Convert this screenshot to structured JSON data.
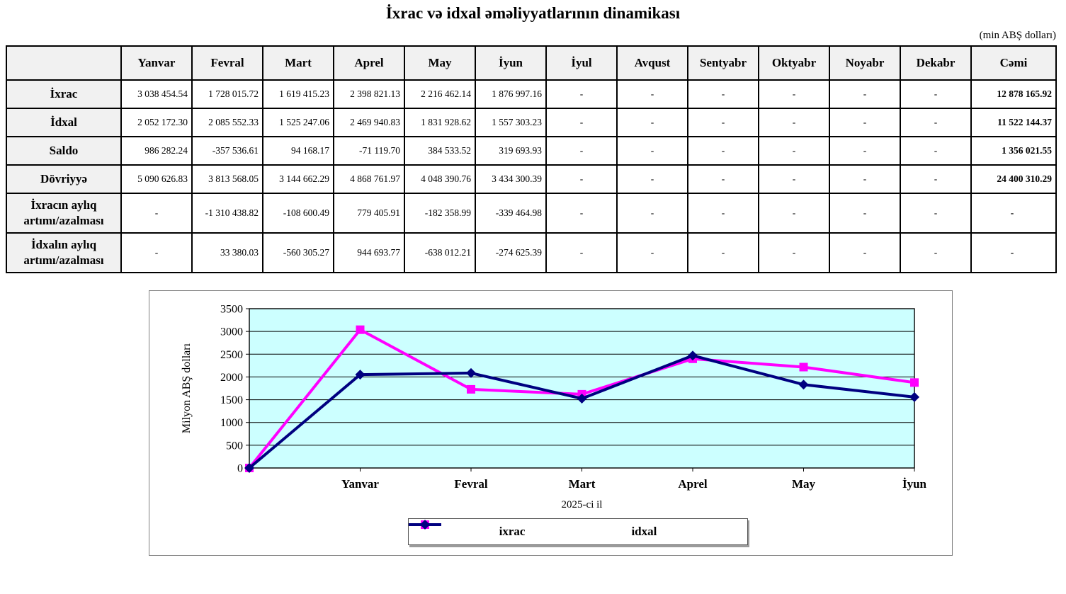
{
  "page": {
    "title": "İxrac və idxal əməliyyatlarının dinamikası",
    "unit_note": "(min ABŞ dolları)"
  },
  "table": {
    "columns": [
      "",
      "Yanvar",
      "Fevral",
      "Mart",
      "Aprel",
      "May",
      "İyun",
      "İyul",
      "Avqust",
      "Sentyabr",
      "Oktyabr",
      "Noyabr",
      "Dekabr",
      "Cəmi"
    ],
    "rows": [
      {
        "label": "İxrac",
        "values": [
          "3 038 454.54",
          "1 728 015.72",
          "1 619 415.23",
          "2 398 821.13",
          "2 216 462.14",
          "1 876 997.16",
          "-",
          "-",
          "-",
          "-",
          "-",
          "-",
          "12 878 165.92"
        ]
      },
      {
        "label": "İdxal",
        "values": [
          "2 052 172.30",
          "2 085 552.33",
          "1 525 247.06",
          "2 469 940.83",
          "1 831 928.62",
          "1 557 303.23",
          "-",
          "-",
          "-",
          "-",
          "-",
          "-",
          "11 522 144.37"
        ]
      },
      {
        "label": "Saldo",
        "values": [
          "986 282.24",
          "-357 536.61",
          "94 168.17",
          "-71 119.70",
          "384 533.52",
          "319 693.93",
          "-",
          "-",
          "-",
          "-",
          "-",
          "-",
          "1 356 021.55"
        ]
      },
      {
        "label": "Dövriyyə",
        "values": [
          "5 090 626.83",
          "3 813 568.05",
          "3 144 662.29",
          "4 868 761.97",
          "4 048 390.76",
          "3 434 300.39",
          "-",
          "-",
          "-",
          "-",
          "-",
          "-",
          "24 400 310.29"
        ]
      },
      {
        "label": "İxracın aylıq artımı/azalması",
        "values": [
          "-",
          "-1 310 438.82",
          "-108 600.49",
          "779 405.91",
          "-182 358.99",
          "-339 464.98",
          "-",
          "-",
          "-",
          "-",
          "-",
          "-",
          "-"
        ]
      },
      {
        "label": "İdxalın aylıq artımı/azalması",
        "values": [
          "-",
          "33 380.03",
          "-560 305.27",
          "944 693.77",
          "-638 012.21",
          "-274 625.39",
          "-",
          "-",
          "-",
          "-",
          "-",
          "-",
          "-"
        ]
      }
    ]
  },
  "chart_data": {
    "type": "line",
    "title": "",
    "categories": [
      "",
      "Yanvar",
      "Fevral",
      "Mart",
      "Aprel",
      "May",
      "İyun"
    ],
    "series": [
      {
        "name": "ixrac",
        "color": "#FF00FF",
        "marker": "square",
        "values": [
          0,
          3038.45,
          1728.02,
          1619.42,
          2398.82,
          2216.46,
          1877.0
        ]
      },
      {
        "name": "idxal",
        "color": "#000080",
        "marker": "diamond",
        "values": [
          0,
          2052.17,
          2085.55,
          1525.25,
          2469.94,
          1831.93,
          1557.3
        ]
      }
    ],
    "xlabel": "2025-ci il",
    "ylabel": "Milyon ABŞ dolları",
    "ylim": [
      0,
      3500
    ],
    "ytick_step": 500,
    "plot_bg": "#CCFFFF",
    "grid": true,
    "legend_position": "bottom"
  }
}
